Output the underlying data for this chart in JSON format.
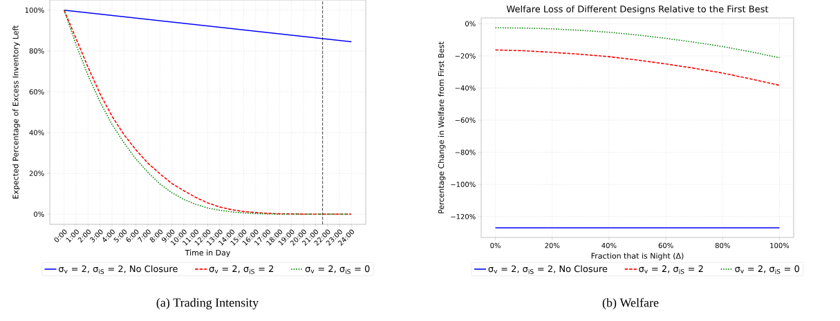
{
  "chart_data": [
    {
      "type": "line",
      "xlabel": "Time in Day",
      "ylabel": "Expected Percentage of Excess Inventory Left",
      "xlim": [
        -1.2,
        25.2
      ],
      "ylim": [
        -5,
        105
      ],
      "xticks": [
        {
          "value": 0,
          "label": "0:00"
        },
        {
          "value": 1,
          "label": "1:00"
        },
        {
          "value": 2,
          "label": "2:00"
        },
        {
          "value": 3,
          "label": "3:00"
        },
        {
          "value": 4,
          "label": "4:00"
        },
        {
          "value": 5,
          "label": "5:00"
        },
        {
          "value": 6,
          "label": "6:00"
        },
        {
          "value": 7,
          "label": "7:00"
        },
        {
          "value": 8,
          "label": "8:00"
        },
        {
          "value": 9,
          "label": "9:00"
        },
        {
          "value": 10,
          "label": "10:00"
        },
        {
          "value": 11,
          "label": "11:00"
        },
        {
          "value": 12,
          "label": "12:00"
        },
        {
          "value": 13,
          "label": "13:00"
        },
        {
          "value": 14,
          "label": "14:00"
        },
        {
          "value": 15,
          "label": "15:00"
        },
        {
          "value": 16,
          "label": "16:00"
        },
        {
          "value": 17,
          "label": "17:00"
        },
        {
          "value": 18,
          "label": "18:00"
        },
        {
          "value": 19,
          "label": "19:00"
        },
        {
          "value": 20,
          "label": "20:00"
        },
        {
          "value": 21,
          "label": "21:00"
        },
        {
          "value": 22,
          "label": "22:00"
        },
        {
          "value": 23,
          "label": "23:00"
        },
        {
          "value": 24,
          "label": "24:00"
        }
      ],
      "yticks": [
        {
          "value": 0,
          "label": "0%"
        },
        {
          "value": 20,
          "label": "20%"
        },
        {
          "value": 40,
          "label": "40%"
        },
        {
          "value": 60,
          "label": "60%"
        },
        {
          "value": 80,
          "label": "80%"
        },
        {
          "value": 100,
          "label": "100%"
        }
      ],
      "grid": true,
      "legend": "bottom",
      "series": [
        {
          "name": "σ$_{v}$ = 2, σ$_{iS}$ = 2, No Closure",
          "color": "#0000ff",
          "line_style": "solid",
          "x": [
            0,
            24
          ],
          "values": [
            100,
            84.5
          ]
        },
        {
          "name": "σ$_{v}$ = 2, σ$_{iS}$ = 2",
          "color": "#ff0000",
          "line_style": "dashed",
          "x": [
            0,
            1,
            2,
            3,
            4,
            5,
            6,
            7,
            8,
            9,
            10,
            11,
            12,
            13,
            14,
            15,
            16,
            17,
            18,
            19,
            20,
            21,
            22,
            23,
            24
          ],
          "values": [
            100,
            86,
            72,
            59,
            48,
            39,
            31.5,
            25,
            19.8,
            15,
            11.5,
            8.2,
            5.5,
            3.5,
            2.2,
            1.3,
            0.8,
            0.4,
            0.2,
            0.1,
            0,
            0,
            0,
            0,
            0
          ]
        },
        {
          "name": "σ$_{v}$ = 2, σ$_{iS}$ = 0",
          "color": "#008000",
          "line_style": "dotted",
          "x": [
            0,
            1,
            2,
            3,
            4,
            5,
            6,
            7,
            8,
            9,
            10,
            11,
            12,
            13,
            14,
            15,
            16,
            17,
            18,
            19,
            20,
            21,
            22,
            23,
            24
          ],
          "values": [
            100,
            83,
            68,
            55,
            44,
            35,
            27,
            20.5,
            14.8,
            10.5,
            7.2,
            4.8,
            3,
            1.9,
            1.1,
            0.6,
            0.3,
            0.1,
            0,
            0,
            0,
            0,
            0,
            0,
            0
          ]
        }
      ],
      "ref_lines": [
        {
          "axis": "x",
          "value": 21.6,
          "color": "#000000",
          "line_style": "dashed"
        }
      ],
      "annotations": [
        "(a) Trading Intensity"
      ]
    },
    {
      "type": "line",
      "title": "Welfare Loss of Different Designs Relative to the First Best",
      "xlabel": "Fraction that is Night (Δ)",
      "ylabel": "Percentage Change in Welfare from First Best",
      "xlim": [
        -5,
        105
      ],
      "ylim": [
        -133,
        3.6
      ],
      "xticks": [
        {
          "value": 0,
          "label": "0%"
        },
        {
          "value": 20,
          "label": "20%"
        },
        {
          "value": 40,
          "label": "40%"
        },
        {
          "value": 60,
          "label": "60%"
        },
        {
          "value": 80,
          "label": "80%"
        },
        {
          "value": 100,
          "label": "100%"
        }
      ],
      "yticks": [
        {
          "value": -120,
          "label": "−120%"
        },
        {
          "value": -100,
          "label": "−100%"
        },
        {
          "value": -80,
          "label": "−80%"
        },
        {
          "value": -60,
          "label": "−60%"
        },
        {
          "value": -40,
          "label": "−40%"
        },
        {
          "value": -20,
          "label": "−20%"
        },
        {
          "value": 0,
          "label": "0%"
        }
      ],
      "grid": true,
      "legend": "bottom",
      "series": [
        {
          "name": "σ$_{v}$ = 2, σ$_{iS}$ = 2, No Closure",
          "color": "#0000ff",
          "line_style": "solid",
          "x": [
            0,
            100
          ],
          "values": [
            -127,
            -127
          ]
        },
        {
          "name": "σ$_{v}$ = 2, σ$_{iS}$ = 2",
          "color": "#ff0000",
          "line_style": "dashed",
          "x": [
            0,
            10,
            20,
            30,
            40,
            50,
            60,
            70,
            80,
            90,
            100
          ],
          "values": [
            -16.3,
            -16.8,
            -17.8,
            -19,
            -20.5,
            -22.6,
            -25,
            -27.7,
            -30.7,
            -34.4,
            -38.3
          ]
        },
        {
          "name": "σ$_{v}$ = 2, σ$_{iS}$ = 0",
          "color": "#008000",
          "line_style": "dotted",
          "x": [
            0,
            10,
            20,
            30,
            40,
            50,
            60,
            70,
            80,
            90,
            100
          ],
          "values": [
            -2.5,
            -2.7,
            -3.2,
            -4.1,
            -5.3,
            -7,
            -9.1,
            -11.5,
            -14.2,
            -17.5,
            -21.2
          ]
        }
      ],
      "annotations": [
        "(b) Welfare"
      ]
    }
  ]
}
